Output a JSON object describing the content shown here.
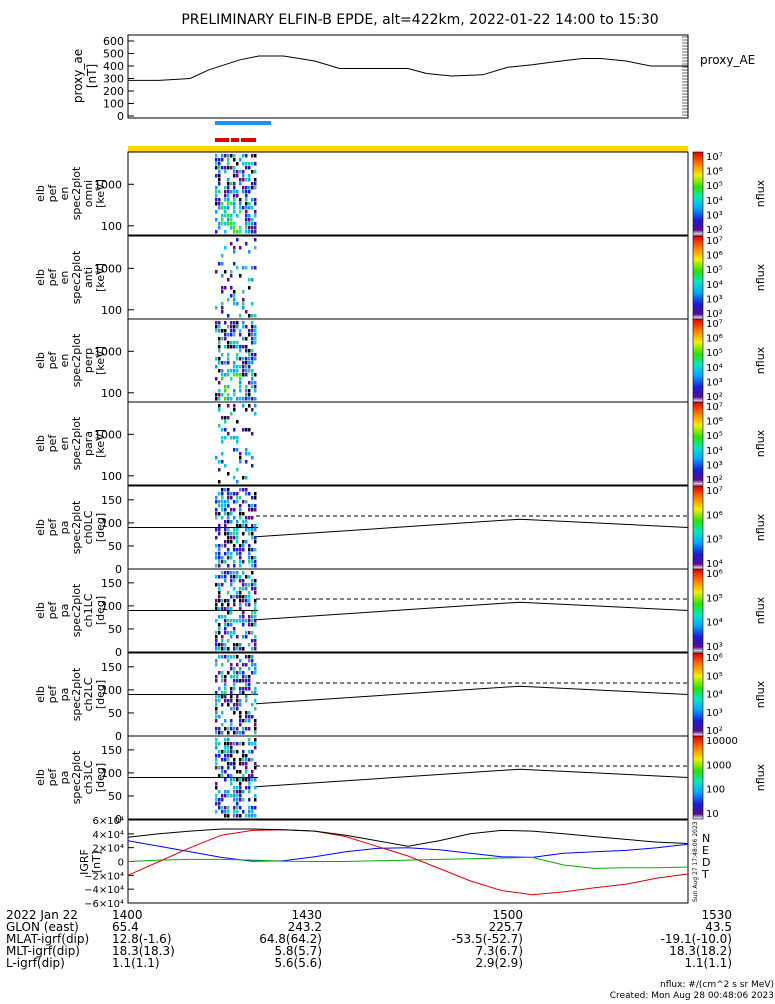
{
  "title": "PRELIMINARY ELFIN-B EPDE, alt=422km, 2022-01-22 14:00 to 15:30",
  "colors": {
    "frame": "#000000",
    "strip_yellow": "#ffd700",
    "marker_blue": "#1e90ff",
    "marker_red": "#e00000",
    "grf_N": "#0000ff",
    "grf_E": "#00b000",
    "grf_D": "#e00000",
    "grf_T": "#000000"
  },
  "chart_data": [
    {
      "type": "line",
      "panel": "proxy_ae",
      "ylabel": "proxy_ae [nT]",
      "legend": "proxy_AE",
      "ylim": [
        0,
        600
      ],
      "yticks": [
        "0",
        "100",
        "200",
        "300",
        "400",
        "500",
        "600"
      ],
      "x": [
        1400,
        1405,
        1410,
        1413,
        1418,
        1421,
        1425,
        1430,
        1434,
        1439,
        1445,
        1448,
        1452,
        1457,
        1501,
        1505,
        1508,
        1513,
        1516,
        1520,
        1524,
        1528,
        1530
      ],
      "values": [
        285,
        285,
        300,
        370,
        450,
        480,
        480,
        440,
        380,
        380,
        380,
        340,
        320,
        330,
        390,
        410,
        430,
        460,
        460,
        440,
        400,
        400,
        400
      ]
    },
    {
      "type": "heatmap",
      "panel": "omni",
      "ylabel": [
        "elb",
        "pef",
        "en",
        "spec2plot",
        "omni",
        "[keV]"
      ],
      "yticks": [
        "100",
        "1000"
      ],
      "colorbar_label": "nflux",
      "colorbar_ticks": [
        "10^2",
        "10^3",
        "10^4",
        "10^5",
        "10^6",
        "10^7"
      ]
    },
    {
      "type": "heatmap",
      "panel": "anti",
      "ylabel": [
        "elb",
        "pef",
        "en",
        "spec2plot",
        "anti",
        "[keV]"
      ],
      "yticks": [
        "100",
        "1000"
      ],
      "colorbar_label": "nflux",
      "colorbar_ticks": [
        "10^2",
        "10^3",
        "10^4",
        "10^5",
        "10^6",
        "10^7"
      ]
    },
    {
      "type": "heatmap",
      "panel": "perp",
      "ylabel": [
        "elb",
        "pef",
        "en",
        "spec2plot",
        "perp",
        "[keV]"
      ],
      "yticks": [
        "100",
        "1000"
      ],
      "colorbar_label": "nflux",
      "colorbar_ticks": [
        "10^2",
        "10^3",
        "10^4",
        "10^5",
        "10^6",
        "10^7"
      ]
    },
    {
      "type": "heatmap",
      "panel": "para",
      "ylabel": [
        "elb",
        "pef",
        "en",
        "spec2plot",
        "para",
        "[keV]"
      ],
      "yticks": [
        "100",
        "1000"
      ],
      "colorbar_label": "nflux",
      "colorbar_ticks": [
        "10^2",
        "10^3",
        "10^4",
        "10^5",
        "10^6",
        "10^7"
      ]
    },
    {
      "type": "heatmap",
      "panel": "ch0LC",
      "ylabel": [
        "elb",
        "pef",
        "pa",
        "spec2plot",
        "ch0LC",
        "[deg]"
      ],
      "yticks": [
        "0",
        "50",
        "100",
        "150"
      ],
      "colorbar_label": "nflux",
      "colorbar_ticks": [
        "10^4",
        "10^5",
        "10^6",
        "10^7"
      ]
    },
    {
      "type": "heatmap",
      "panel": "ch1LC",
      "ylabel": [
        "elb",
        "pef",
        "pa",
        "spec2plot",
        "ch1LC",
        "[deg]"
      ],
      "yticks": [
        "0",
        "50",
        "100",
        "150"
      ],
      "colorbar_label": "nflux",
      "colorbar_ticks": [
        "10^3",
        "10^4",
        "10^5",
        "10^6"
      ]
    },
    {
      "type": "heatmap",
      "panel": "ch2LC",
      "ylabel": [
        "elb",
        "pef",
        "pa",
        "spec2plot",
        "ch2LC",
        "[deg]"
      ],
      "yticks": [
        "0",
        "50",
        "100",
        "150"
      ],
      "colorbar_label": "nflux",
      "colorbar_ticks": [
        "10^2",
        "10^3",
        "10^4",
        "10^5",
        "10^6"
      ]
    },
    {
      "type": "heatmap",
      "panel": "ch3LC",
      "ylabel": [
        "elb",
        "pef",
        "pa",
        "spec2plot",
        "ch3LC",
        "[deg]"
      ],
      "yticks": [
        "0",
        "50",
        "100",
        "150"
      ],
      "colorbar_label": "nflux",
      "colorbar_ticks": [
        "10",
        "100",
        "1000",
        "10000"
      ]
    },
    {
      "type": "line",
      "panel": "IGRF",
      "ylabel": "IGRF [nT]",
      "yticks": [
        "-6x10^4",
        "-4x10^4",
        "-2x10^4",
        "0",
        "2x10^4",
        "4x10^4",
        "6x10^4"
      ],
      "ylim": [
        -60000,
        60000
      ],
      "x": [
        1400,
        1405,
        1410,
        1415,
        1420,
        1425,
        1430,
        1435,
        1440,
        1445,
        1450,
        1455,
        1500,
        1505,
        1510,
        1515,
        1520,
        1525,
        1530
      ],
      "series": [
        {
          "name": "N",
          "values": [
            30000,
            22000,
            14000,
            6000,
            500,
            1000,
            7000,
            14000,
            19000,
            20000,
            17000,
            12000,
            7000,
            6000,
            12000,
            14000,
            16000,
            20000,
            25000
          ]
        },
        {
          "name": "E",
          "values": [
            0,
            2000,
            3000,
            3000,
            2000,
            500,
            0,
            0,
            1000,
            2000,
            3000,
            4000,
            5000,
            6000,
            -5000,
            -10000,
            -9000,
            -9000,
            -8000
          ]
        },
        {
          "name": "D",
          "values": [
            -20000,
            0,
            20000,
            38000,
            45000,
            46000,
            44000,
            36000,
            22000,
            8000,
            -10000,
            -28000,
            -42000,
            -48000,
            -44000,
            -38000,
            -33000,
            -24000,
            -18000
          ]
        },
        {
          "name": "T",
          "values": [
            35000,
            40000,
            44000,
            47000,
            47000,
            46000,
            44000,
            38000,
            30000,
            22000,
            30000,
            40000,
            45000,
            44000,
            40000,
            36000,
            32000,
            28000,
            26000
          ]
        }
      ]
    }
  ],
  "xaxis": {
    "rows": [
      {
        "label": "2022 Jan 22",
        "values": [
          "1400",
          "1430",
          "1500",
          "1530"
        ]
      },
      {
        "label": "GLON (east)",
        "values": [
          "65.4",
          "243.2",
          "225.7",
          "43.5"
        ]
      },
      {
        "label": "MLAT-igrf(dip)",
        "values": [
          "12.8(-1.6)",
          "64.8(64.2)",
          "-53.5(-52.7)",
          "-19.1(-10.0)"
        ]
      },
      {
        "label": "MLT-igrf(dip)",
        "values": [
          "18.3(18.3)",
          "5.8(5.7)",
          "7.3(6.7)",
          "18.3(18.2)"
        ]
      },
      {
        "label": "L-igrf(dip)",
        "values": [
          "1.1(1.1)",
          "5.6(5.6)",
          "2.9(2.9)",
          "1.1(1.1)"
        ]
      }
    ]
  },
  "footer": {
    "units": "nflux: #/(cm^2 s sr MeV)",
    "created": "Created: Mon Aug 28 00:48:06 2023",
    "side_stamp": "Sun Aug 27 17:48:06 2023"
  }
}
